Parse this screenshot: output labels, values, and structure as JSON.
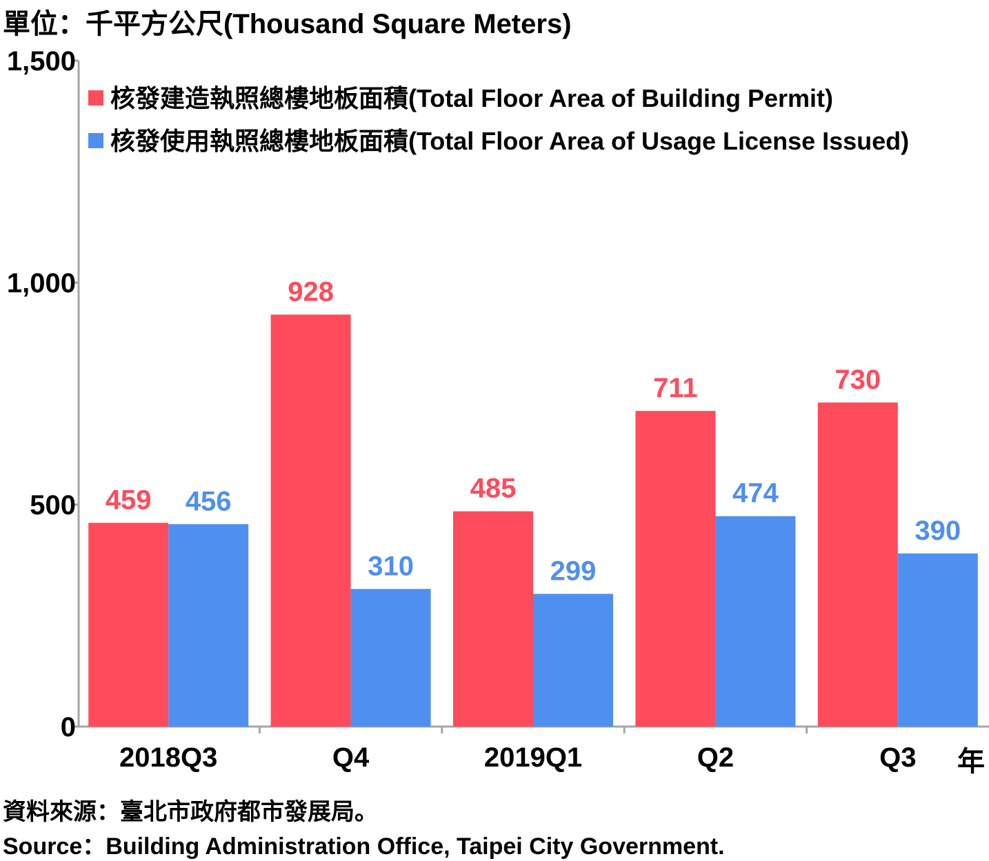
{
  "unit_label": "單位：千平方公尺(Thousand Square Meters)",
  "year_unit": "年",
  "source_zh": "資料來源：臺北市政府都市發展局。",
  "source_en": "Source：Building Administration Office, Taipei City Government.",
  "colors": {
    "permit": "#ff4b5c",
    "usage": "#4f8ff0",
    "axis": "#a6a6a6"
  },
  "chart_data": {
    "type": "bar",
    "categories": [
      "2018Q3",
      "Q4",
      "2019Q1",
      "Q2",
      "Q3"
    ],
    "series": [
      {
        "name": "核發建造執照總樓地板面積(Total Floor Area of Building Permit)",
        "values": [
          459,
          928,
          485,
          711,
          730
        ]
      },
      {
        "name": "核發使用執照總樓地板面積(Total Floor Area of Usage License Issued)",
        "values": [
          456,
          310,
          299,
          474,
          390
        ]
      }
    ],
    "yticks": [
      "0",
      "500",
      "1,000",
      "1,500"
    ],
    "ylim": [
      0,
      1500
    ],
    "legend_position": "top-left",
    "grid": false
  }
}
